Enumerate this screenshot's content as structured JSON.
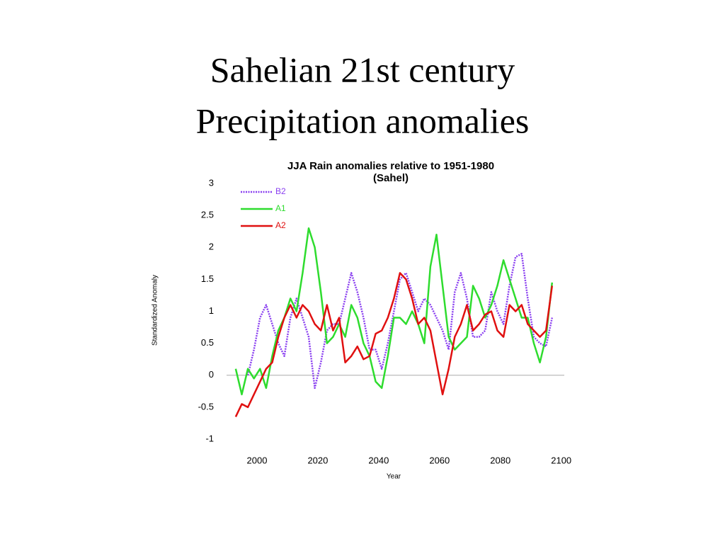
{
  "heading": [
    "Sahelian 21st century",
    "Precipitation anomalies"
  ],
  "chart_data": {
    "type": "line",
    "title": "JJA Rain anomalies relative to 1951-1980",
    "subtitle": "(Sahel)",
    "x_label": "Year",
    "y_label": "Standardized Anomaly",
    "xlim": [
      1990,
      2101
    ],
    "ylim": [
      -1,
      3
    ],
    "xticks": [
      2000,
      2020,
      2040,
      2060,
      2080,
      2100
    ],
    "yticks": [
      -1,
      -0.5,
      0,
      0.5,
      1,
      1.5,
      2,
      2.5,
      3
    ],
    "legend": "top-left",
    "x": [
      1993,
      1995,
      1997,
      1999,
      2001,
      2003,
      2005,
      2007,
      2009,
      2011,
      2013,
      2015,
      2017,
      2019,
      2021,
      2023,
      2025,
      2027,
      2029,
      2031,
      2033,
      2035,
      2037,
      2039,
      2041,
      2043,
      2045,
      2047,
      2049,
      2051,
      2053,
      2055,
      2057,
      2059,
      2061,
      2063,
      2065,
      2067,
      2069,
      2071,
      2073,
      2075,
      2077,
      2079,
      2081,
      2083,
      2085,
      2087,
      2089,
      2091,
      2093,
      2095,
      2097
    ],
    "series": [
      {
        "name": "B2",
        "color": "#8a3ff0",
        "style": "dotted",
        "values": [
          null,
          null,
          0.0,
          0.4,
          0.9,
          1.1,
          0.8,
          0.5,
          0.3,
          0.9,
          1.2,
          0.9,
          0.6,
          -0.2,
          0.2,
          0.7,
          0.8,
          0.8,
          1.2,
          1.6,
          1.3,
          0.9,
          0.4,
          0.4,
          0.1,
          0.5,
          1.0,
          1.5,
          1.6,
          1.3,
          1.0,
          1.2,
          1.1,
          0.9,
          0.7,
          0.4,
          1.3,
          1.6,
          1.2,
          0.6,
          0.6,
          0.7,
          1.3,
          1.0,
          0.8,
          1.4,
          1.85,
          1.9,
          1.2,
          0.6,
          0.5,
          0.45,
          0.9
        ]
      },
      {
        "name": "A1",
        "color": "#2edc2e",
        "style": "solid",
        "values": [
          0.1,
          -0.3,
          0.1,
          -0.05,
          0.1,
          -0.2,
          0.3,
          0.7,
          0.9,
          1.2,
          1.0,
          1.6,
          2.3,
          2.0,
          1.3,
          0.5,
          0.6,
          0.8,
          0.6,
          1.1,
          0.9,
          0.5,
          0.3,
          -0.1,
          -0.2,
          0.3,
          0.9,
          0.9,
          0.8,
          1.0,
          0.8,
          0.5,
          1.7,
          2.2,
          1.4,
          0.6,
          0.4,
          0.5,
          0.6,
          1.4,
          1.2,
          0.9,
          1.1,
          1.4,
          1.8,
          1.5,
          1.2,
          0.9,
          0.9,
          0.5,
          0.2,
          0.6,
          1.45
        ]
      },
      {
        "name": "A2",
        "color": "#e01010",
        "style": "solid",
        "values": [
          -0.65,
          -0.45,
          -0.5,
          -0.3,
          -0.1,
          0.1,
          0.2,
          0.6,
          0.9,
          1.1,
          0.9,
          1.1,
          1.0,
          0.8,
          0.7,
          1.1,
          0.7,
          0.9,
          0.2,
          0.3,
          0.45,
          0.25,
          0.3,
          0.65,
          0.7,
          0.9,
          1.2,
          1.6,
          1.5,
          1.2,
          0.8,
          0.9,
          0.7,
          0.2,
          -0.3,
          0.1,
          0.6,
          0.8,
          1.1,
          0.7,
          0.8,
          0.95,
          1.0,
          0.7,
          0.6,
          1.1,
          1.0,
          1.1,
          0.8,
          0.7,
          0.6,
          0.7,
          1.4
        ]
      }
    ]
  }
}
